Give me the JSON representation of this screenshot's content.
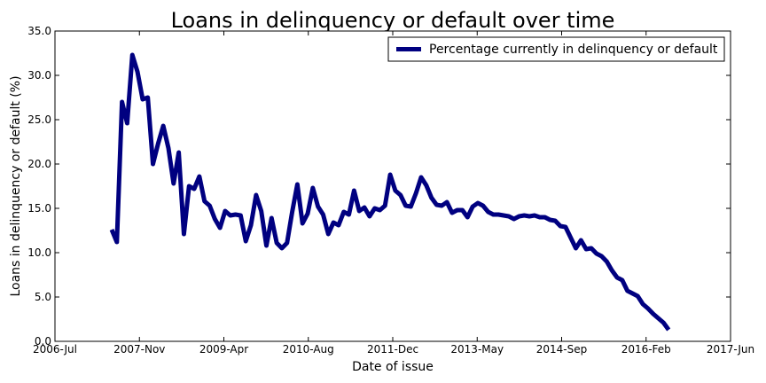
{
  "chart_data": {
    "type": "line",
    "title": "Loans in delinquency or default over time",
    "xlabel": "Date of issue",
    "ylabel": "Loans in delinquency or default (%)",
    "xlim": [
      "2006-07",
      "2017-06"
    ],
    "ylim": [
      0,
      35
    ],
    "x_ticks": [
      "2006-Jul",
      "2007-Nov",
      "2009-Apr",
      "2010-Aug",
      "2011-Dec",
      "2013-May",
      "2014-Sep",
      "2016-Feb",
      "2017-Jun"
    ],
    "y_ticks": [
      "0.0",
      "5.0",
      "10.0",
      "15.0",
      "20.0",
      "25.0",
      "30.0",
      "35.0"
    ],
    "grid": false,
    "legend": {
      "location": "top-right",
      "entries": [
        "Percentage currently in delinquency or default"
      ]
    },
    "series": [
      {
        "name": "Percentage currently in delinquency or default",
        "color": "#000080",
        "x": [
          "2007-06",
          "2007-07",
          "2007-08",
          "2007-09",
          "2007-10",
          "2007-11",
          "2007-12",
          "2008-01",
          "2008-02",
          "2008-03",
          "2008-04",
          "2008-05",
          "2008-06",
          "2008-07",
          "2008-08",
          "2008-09",
          "2008-10",
          "2008-11",
          "2008-12",
          "2009-01",
          "2009-02",
          "2009-03",
          "2009-04",
          "2009-05",
          "2009-06",
          "2009-07",
          "2009-08",
          "2009-09",
          "2009-10",
          "2009-11",
          "2009-12",
          "2010-01",
          "2010-02",
          "2010-03",
          "2010-04",
          "2010-05",
          "2010-06",
          "2010-07",
          "2010-08",
          "2010-09",
          "2010-10",
          "2010-11",
          "2010-12",
          "2011-01",
          "2011-02",
          "2011-03",
          "2011-04",
          "2011-05",
          "2011-06",
          "2011-07",
          "2011-08",
          "2011-09",
          "2011-10",
          "2011-11",
          "2011-12",
          "2012-01",
          "2012-02",
          "2012-03",
          "2012-04",
          "2012-05",
          "2012-06",
          "2012-07",
          "2012-08",
          "2012-09",
          "2012-10",
          "2012-11",
          "2012-12",
          "2013-01",
          "2013-02",
          "2013-03",
          "2013-04",
          "2013-05",
          "2013-06",
          "2013-07",
          "2013-08",
          "2013-09",
          "2013-10",
          "2013-11",
          "2013-12",
          "2014-01",
          "2014-02",
          "2014-03",
          "2014-04",
          "2014-05",
          "2014-06",
          "2014-07",
          "2014-08",
          "2014-09",
          "2014-10",
          "2014-11",
          "2014-12",
          "2015-01",
          "2015-02",
          "2015-03",
          "2015-04",
          "2015-05",
          "2015-06",
          "2015-07",
          "2015-08",
          "2015-09",
          "2015-10",
          "2015-11",
          "2015-12",
          "2016-01",
          "2016-02",
          "2016-03",
          "2016-04",
          "2016-05",
          "2016-06"
        ],
        "y": [
          12.6,
          11.2,
          27.0,
          24.6,
          32.3,
          30.4,
          27.3,
          27.5,
          20.0,
          22.3,
          24.3,
          21.8,
          17.8,
          21.3,
          12.1,
          17.5,
          17.2,
          18.6,
          15.8,
          15.3,
          13.8,
          12.8,
          14.7,
          14.2,
          14.3,
          14.2,
          11.3,
          13.1,
          16.5,
          14.7,
          10.8,
          13.9,
          11.1,
          10.5,
          11.1,
          14.6,
          17.7,
          13.3,
          14.4,
          17.3,
          15.2,
          14.3,
          12.1,
          13.4,
          13.1,
          14.6,
          14.3,
          17.0,
          14.7,
          15.1,
          14.1,
          15.0,
          14.8,
          15.3,
          18.8,
          17.0,
          16.5,
          15.3,
          15.2,
          16.7,
          18.5,
          17.6,
          16.2,
          15.4,
          15.3,
          15.7,
          14.5,
          14.8,
          14.8,
          14.0,
          15.2,
          15.6,
          15.3,
          14.6,
          14.3,
          14.3,
          14.2,
          14.1,
          13.8,
          14.1,
          14.2,
          14.1,
          14.2,
          14.0,
          14.0,
          13.7,
          13.6,
          13.0,
          12.9,
          11.7,
          10.5,
          11.4,
          10.4,
          10.5,
          9.9,
          9.6,
          9.0,
          8.0,
          7.2,
          6.9,
          5.7,
          5.4,
          5.1,
          4.2,
          3.7,
          3.1,
          2.6,
          2.1,
          1.3
        ]
      }
    ]
  }
}
